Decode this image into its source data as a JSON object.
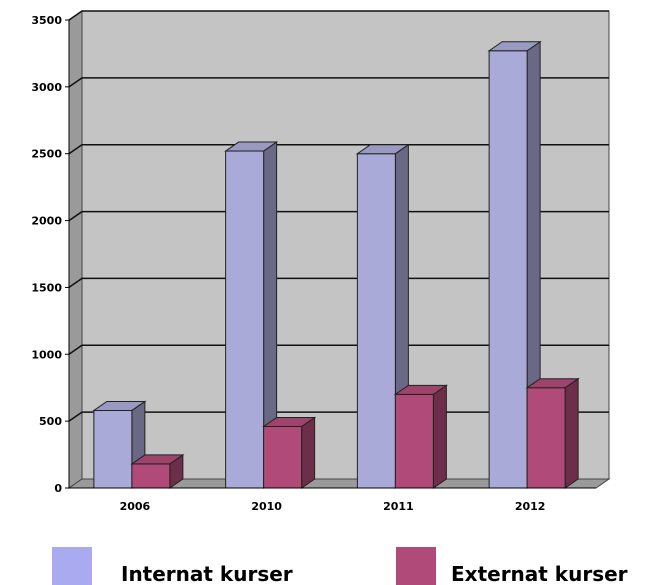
{
  "chart_data": {
    "type": "bar",
    "title": "",
    "xlabel": "",
    "ylabel": "",
    "categories": [
      "2006",
      "2010",
      "2011",
      "2012"
    ],
    "series": [
      {
        "name": "Internat kurser",
        "values": [
          580,
          2520,
          2500,
          3270
        ],
        "color": "#aaaad8"
      },
      {
        "name": "Externat kurser",
        "values": [
          180,
          460,
          700,
          750
        ],
        "color": "#b04a78"
      }
    ],
    "ylim": [
      0,
      3500
    ],
    "yticks": [
      0,
      500,
      1000,
      1500,
      2000,
      2500,
      3000,
      3500
    ],
    "grid": true,
    "legend": "bottom",
    "three_d": true
  }
}
